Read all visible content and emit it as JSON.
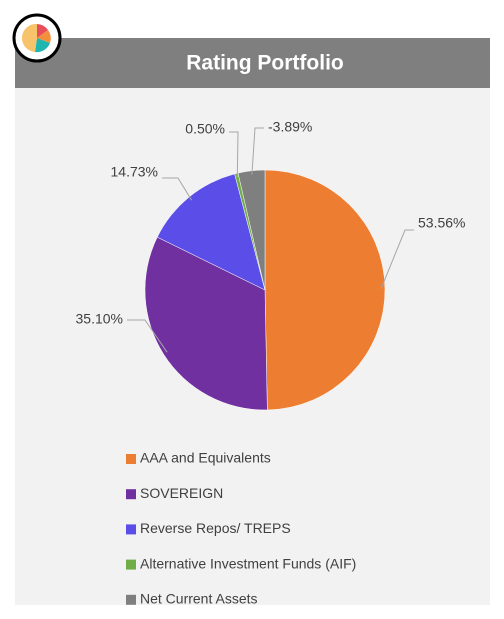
{
  "chart_data": {
    "type": "pie",
    "title": "Rating Portfolio",
    "categories": [
      "AAA and Equivalents",
      "SOVEREIGN",
      "Reverse Repos/ TREPS",
      "Alternative Investment Funds (AIF)",
      "Net Current Assets"
    ],
    "values": [
      53.56,
      35.1,
      14.73,
      0.5,
      -3.89
    ],
    "value_labels": [
      "53.56%",
      "35.10%",
      "14.73%",
      "0.50%",
      "-3.89%"
    ],
    "colors": [
      "#ed7d31",
      "#7030a0",
      "#5b4ee8",
      "#70ad47",
      "#7f7f7f"
    ]
  }
}
